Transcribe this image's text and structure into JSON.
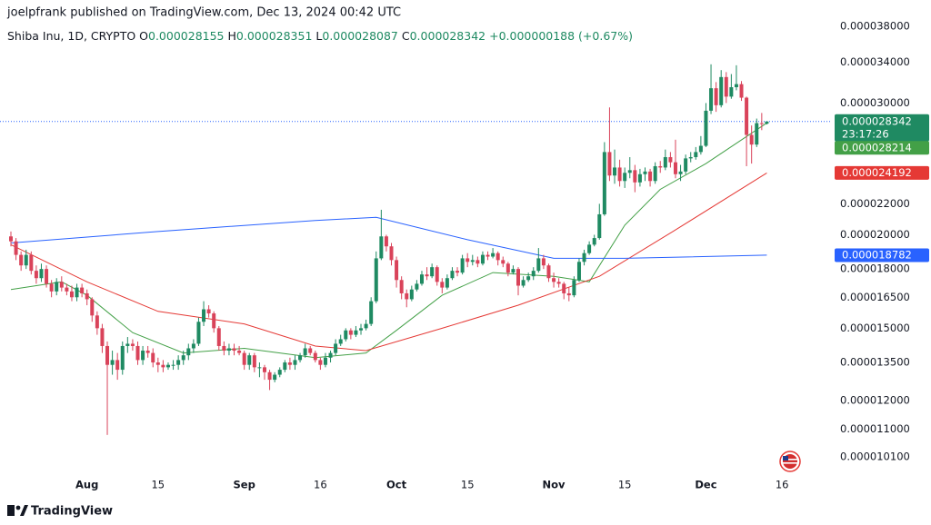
{
  "header": {
    "byline": "joelpfrank published on TradingView.com, Dec 13, 2024 00:42 UTC"
  },
  "chart_data": {
    "type": "candlestick",
    "symbol": "Shiba Inu, 1D, CRYPTO",
    "ohlc_letters": [
      "O",
      "H",
      "L",
      "C"
    ],
    "change": "+0.000000188 (+0.67%)",
    "countdown": "23:17:26",
    "log_scale": true,
    "up_color": "#1f8a62",
    "down_color": "#d9435a",
    "last_line_color": "#2962ff",
    "x": [
      "Jul 17",
      "Jul 18",
      "Jul 19",
      "Jul 20",
      "Jul 21",
      "Jul 22",
      "Jul 23",
      "Jul 24",
      "Jul 25",
      "Jul 26",
      "Jul 27",
      "Jul 28",
      "Jul 29",
      "Jul 30",
      "Jul 31",
      "Aug 1",
      "Aug 2",
      "Aug 3",
      "Aug 4",
      "Aug 5",
      "Aug 6",
      "Aug 7",
      "Aug 8",
      "Aug 9",
      "Aug 10",
      "Aug 11",
      "Aug 12",
      "Aug 13",
      "Aug 14",
      "Aug 15",
      "Aug 16",
      "Aug 17",
      "Aug 18",
      "Aug 19",
      "Aug 20",
      "Aug 21",
      "Aug 22",
      "Aug 23",
      "Aug 24",
      "Aug 25",
      "Aug 26",
      "Aug 27",
      "Aug 28",
      "Aug 29",
      "Aug 30",
      "Aug 31",
      "Sep 1",
      "Sep 2",
      "Sep 3",
      "Sep 4",
      "Sep 5",
      "Sep 6",
      "Sep 7",
      "Sep 8",
      "Sep 9",
      "Sep 10",
      "Sep 11",
      "Sep 12",
      "Sep 13",
      "Sep 14",
      "Sep 15",
      "Sep 16",
      "Sep 17",
      "Sep 18",
      "Sep 19",
      "Sep 20",
      "Sep 21",
      "Sep 22",
      "Sep 23",
      "Sep 24",
      "Sep 25",
      "Sep 26",
      "Sep 27",
      "Sep 28",
      "Sep 29",
      "Sep 30",
      "Oct 1",
      "Oct 2",
      "Oct 3",
      "Oct 4",
      "Oct 5",
      "Oct 6",
      "Oct 7",
      "Oct 8",
      "Oct 9",
      "Oct 10",
      "Oct 11",
      "Oct 12",
      "Oct 13",
      "Oct 14",
      "Oct 15",
      "Oct 16",
      "Oct 17",
      "Oct 18",
      "Oct 19",
      "Oct 20",
      "Oct 21",
      "Oct 22",
      "Oct 23",
      "Oct 24",
      "Oct 25",
      "Oct 26",
      "Oct 27",
      "Oct 28",
      "Oct 29",
      "Oct 30",
      "Oct 31",
      "Nov 1",
      "Nov 2",
      "Nov 3",
      "Nov 4",
      "Nov 5",
      "Nov 6",
      "Nov 7",
      "Nov 8",
      "Nov 9",
      "Nov 10",
      "Nov 11",
      "Nov 12",
      "Nov 13",
      "Nov 14",
      "Nov 15",
      "Nov 16",
      "Nov 17",
      "Nov 18",
      "Nov 19",
      "Nov 20",
      "Nov 21",
      "Nov 22",
      "Nov 23",
      "Nov 24",
      "Nov 25",
      "Nov 26",
      "Nov 27",
      "Nov 28",
      "Nov 29",
      "Nov 30",
      "Dec 1",
      "Dec 2",
      "Dec 3",
      "Dec 4",
      "Dec 5",
      "Dec 6",
      "Dec 7",
      "Dec 8",
      "Dec 9",
      "Dec 10",
      "Dec 11",
      "Dec 12",
      "Dec 13"
    ],
    "open": [
      1.99e-05,
      1.96e-05,
      1.88e-05,
      1.82e-05,
      1.88e-05,
      1.79e-05,
      1.75e-05,
      1.8e-05,
      1.72e-05,
      1.68e-05,
      1.73e-05,
      1.7e-05,
      1.68e-05,
      1.65e-05,
      1.7e-05,
      1.67e-05,
      1.64e-05,
      1.56e-05,
      1.5e-05,
      1.42e-05,
      1.34e-05,
      1.36e-05,
      1.32e-05,
      1.42e-05,
      1.43e-05,
      1.42e-05,
      1.36e-05,
      1.4e-05,
      1.39e-05,
      1.35e-05,
      1.34e-05,
      1.33e-05,
      1.34e-05,
      1.34e-05,
      1.36e-05,
      1.38e-05,
      1.41e-05,
      1.43e-05,
      1.53e-05,
      1.59e-05,
      1.57e-05,
      1.5e-05,
      1.42e-05,
      1.4e-05,
      1.41e-05,
      1.4e-05,
      1.39e-05,
      1.34e-05,
      1.38e-05,
      1.33e-05,
      1.33e-05,
      1.31e-05,
      1.28e-05,
      1.3e-05,
      1.32e-05,
      1.35e-05,
      1.34e-05,
      1.36e-05,
      1.38e-05,
      1.41e-05,
      1.39e-05,
      1.36e-05,
      1.34e-05,
      1.37e-05,
      1.39e-05,
      1.43e-05,
      1.45e-05,
      1.49e-05,
      1.47e-05,
      1.49e-05,
      1.5e-05,
      1.52e-05,
      1.63e-05,
      1.86e-05,
      1.99e-05,
      1.93e-05,
      1.85e-05,
      1.74e-05,
      1.67e-05,
      1.64e-05,
      1.69e-05,
      1.72e-05,
      1.77e-05,
      1.76e-05,
      1.81e-05,
      1.73e-05,
      1.7e-05,
      1.75e-05,
      1.79e-05,
      1.78e-05,
      1.86e-05,
      1.84e-05,
      1.85e-05,
      1.83e-05,
      1.88e-05,
      1.87e-05,
      1.89e-05,
      1.85e-05,
      1.83e-05,
      1.78e-05,
      1.8e-05,
      1.71e-05,
      1.74e-05,
      1.76e-05,
      1.79e-05,
      1.86e-05,
      1.82e-05,
      1.75e-05,
      1.73e-05,
      1.72e-05,
      1.67e-05,
      1.66e-05,
      1.74e-05,
      1.84e-05,
      1.89e-05,
      1.94e-05,
      1.98e-05,
      2.13e-05,
      2.58e-05,
      2.4e-05,
      2.46e-05,
      2.36e-05,
      2.42e-05,
      2.44e-05,
      2.35e-05,
      2.41e-05,
      2.43e-05,
      2.36e-05,
      2.47e-05,
      2.46e-05,
      2.54e-05,
      2.5e-05,
      2.41e-05,
      2.43e-05,
      2.53e-05,
      2.54e-05,
      2.58e-05,
      2.63e-05,
      2.93e-05,
      3.14e-05,
      2.98e-05,
      3.25e-05,
      3.06e-05,
      3.15e-05,
      3.18e-05,
      3.05e-05,
      2.72e-05,
      2.64e-05,
      2.82e-05,
      2.8155e-05
    ],
    "high": [
      2.02e-05,
      1.98e-05,
      1.9e-05,
      1.91e-05,
      1.9e-05,
      1.82e-05,
      1.83e-05,
      1.82e-05,
      1.74e-05,
      1.75e-05,
      1.76e-05,
      1.72e-05,
      1.71e-05,
      1.72e-05,
      1.72e-05,
      1.69e-05,
      1.65e-05,
      1.58e-05,
      1.52e-05,
      1.44e-05,
      1.4e-05,
      1.39e-05,
      1.44e-05,
      1.46e-05,
      1.45e-05,
      1.44e-05,
      1.42e-05,
      1.42e-05,
      1.41e-05,
      1.37e-05,
      1.36e-05,
      1.35e-05,
      1.36e-05,
      1.38e-05,
      1.4e-05,
      1.43e-05,
      1.45e-05,
      1.55e-05,
      1.63e-05,
      1.61e-05,
      1.58e-05,
      1.51e-05,
      1.44e-05,
      1.43e-05,
      1.43e-05,
      1.42e-05,
      1.4e-05,
      1.39e-05,
      1.39e-05,
      1.35e-05,
      1.34e-05,
      1.32e-05,
      1.31e-05,
      1.33e-05,
      1.36e-05,
      1.37e-05,
      1.38e-05,
      1.39e-05,
      1.43e-05,
      1.42e-05,
      1.4e-05,
      1.37e-05,
      1.39e-05,
      1.4e-05,
      1.45e-05,
      1.47e-05,
      1.5e-05,
      1.5e-05,
      1.51e-05,
      1.52e-05,
      1.54e-05,
      1.65e-05,
      1.9e-05,
      2.16e-05,
      2e-05,
      1.95e-05,
      1.87e-05,
      1.76e-05,
      1.69e-05,
      1.71e-05,
      1.74e-05,
      1.79e-05,
      1.81e-05,
      1.83e-05,
      1.82e-05,
      1.75e-05,
      1.77e-05,
      1.81e-05,
      1.81e-05,
      1.88e-05,
      1.89e-05,
      1.88e-05,
      1.87e-05,
      1.9e-05,
      1.9e-05,
      1.92e-05,
      1.9e-05,
      1.87e-05,
      1.84e-05,
      1.82e-05,
      1.81e-05,
      1.76e-05,
      1.78e-05,
      1.81e-05,
      1.92e-05,
      1.88e-05,
      1.83e-05,
      1.78e-05,
      1.75e-05,
      1.73e-05,
      1.7e-05,
      1.76e-05,
      1.86e-05,
      1.91e-05,
      1.96e-05,
      2e-05,
      2.2e-05,
      2.66e-05,
      2.96e-05,
      2.6e-05,
      2.52e-05,
      2.46e-05,
      2.54e-05,
      2.48e-05,
      2.45e-05,
      2.46e-05,
      2.45e-05,
      2.5e-05,
      2.51e-05,
      2.6e-05,
      2.58e-05,
      2.68e-05,
      2.48e-05,
      2.56e-05,
      2.58e-05,
      2.62e-05,
      2.71e-05,
      3e-05,
      3.38e-05,
      3.2e-05,
      3.32e-05,
      3.3e-05,
      3.28e-05,
      3.37e-05,
      3.21e-05,
      3.06e-05,
      2.8e-05,
      2.86e-05,
      2.91e-05,
      2.8351e-05
    ],
    "low": [
      1.93e-05,
      1.85e-05,
      1.79e-05,
      1.8e-05,
      1.77e-05,
      1.72e-05,
      1.73e-05,
      1.7e-05,
      1.65e-05,
      1.66e-05,
      1.68e-05,
      1.66e-05,
      1.63e-05,
      1.63e-05,
      1.65e-05,
      1.61e-05,
      1.53e-05,
      1.47e-05,
      1.39e-05,
      1.08e-05,
      1.3e-05,
      1.28e-05,
      1.3e-05,
      1.39e-05,
      1.4e-05,
      1.34e-05,
      1.34e-05,
      1.37e-05,
      1.33e-05,
      1.31e-05,
      1.31e-05,
      1.32e-05,
      1.32e-05,
      1.32e-05,
      1.34e-05,
      1.36e-05,
      1.39e-05,
      1.42e-05,
      1.51e-05,
      1.55e-05,
      1.48e-05,
      1.4e-05,
      1.38e-05,
      1.38e-05,
      1.38e-05,
      1.38e-05,
      1.32e-05,
      1.32e-05,
      1.31e-05,
      1.29e-05,
      1.28e-05,
      1.24e-05,
      1.27e-05,
      1.29e-05,
      1.31e-05,
      1.32e-05,
      1.32e-05,
      1.35e-05,
      1.37e-05,
      1.38e-05,
      1.35e-05,
      1.32e-05,
      1.33e-05,
      1.35e-05,
      1.38e-05,
      1.42e-05,
      1.44e-05,
      1.45e-05,
      1.46e-05,
      1.47e-05,
      1.49e-05,
      1.51e-05,
      1.62e-05,
      1.85e-05,
      1.9e-05,
      1.82e-05,
      1.7e-05,
      1.64e-05,
      1.6e-05,
      1.63e-05,
      1.68e-05,
      1.71e-05,
      1.74e-05,
      1.75e-05,
      1.71e-05,
      1.67e-05,
      1.69e-05,
      1.74e-05,
      1.76e-05,
      1.77e-05,
      1.81e-05,
      1.82e-05,
      1.81e-05,
      1.82e-05,
      1.85e-05,
      1.86e-05,
      1.82e-05,
      1.81e-05,
      1.76e-05,
      1.77e-05,
      1.66e-05,
      1.7e-05,
      1.73e-05,
      1.74e-05,
      1.78e-05,
      1.8e-05,
      1.73e-05,
      1.7e-05,
      1.7e-05,
      1.64e-05,
      1.63e-05,
      1.65e-05,
      1.73e-05,
      1.82e-05,
      1.88e-05,
      1.93e-05,
      1.97e-05,
      2.12e-05,
      2.36e-05,
      2.34e-05,
      2.32e-05,
      2.31e-05,
      2.38e-05,
      2.28e-05,
      2.32e-05,
      2.36e-05,
      2.32e-05,
      2.34e-05,
      2.42e-05,
      2.44e-05,
      2.46e-05,
      2.38e-05,
      2.36e-05,
      2.41e-05,
      2.5e-05,
      2.52e-05,
      2.56e-05,
      2.62e-05,
      2.9e-05,
      2.92e-05,
      2.96e-05,
      3e-05,
      3.04e-05,
      3.12e-05,
      3.02e-05,
      2.47e-05,
      2.49e-05,
      2.62e-05,
      2.76e-05,
      2.8087e-05
    ],
    "close": [
      1.96e-05,
      1.88e-05,
      1.82e-05,
      1.88e-05,
      1.79e-05,
      1.75e-05,
      1.8e-05,
      1.72e-05,
      1.68e-05,
      1.73e-05,
      1.7e-05,
      1.68e-05,
      1.65e-05,
      1.7e-05,
      1.67e-05,
      1.64e-05,
      1.56e-05,
      1.5e-05,
      1.42e-05,
      1.34e-05,
      1.36e-05,
      1.32e-05,
      1.42e-05,
      1.43e-05,
      1.42e-05,
      1.36e-05,
      1.4e-05,
      1.39e-05,
      1.35e-05,
      1.34e-05,
      1.33e-05,
      1.34e-05,
      1.34e-05,
      1.36e-05,
      1.38e-05,
      1.41e-05,
      1.43e-05,
      1.53e-05,
      1.59e-05,
      1.57e-05,
      1.5e-05,
      1.42e-05,
      1.4e-05,
      1.41e-05,
      1.4e-05,
      1.39e-05,
      1.34e-05,
      1.38e-05,
      1.33e-05,
      1.33e-05,
      1.31e-05,
      1.28e-05,
      1.3e-05,
      1.32e-05,
      1.35e-05,
      1.34e-05,
      1.36e-05,
      1.38e-05,
      1.41e-05,
      1.39e-05,
      1.36e-05,
      1.34e-05,
      1.37e-05,
      1.39e-05,
      1.43e-05,
      1.45e-05,
      1.49e-05,
      1.47e-05,
      1.49e-05,
      1.5e-05,
      1.52e-05,
      1.63e-05,
      1.86e-05,
      1.99e-05,
      1.93e-05,
      1.85e-05,
      1.74e-05,
      1.67e-05,
      1.64e-05,
      1.69e-05,
      1.72e-05,
      1.77e-05,
      1.76e-05,
      1.81e-05,
      1.73e-05,
      1.7e-05,
      1.75e-05,
      1.79e-05,
      1.78e-05,
      1.86e-05,
      1.84e-05,
      1.85e-05,
      1.83e-05,
      1.88e-05,
      1.87e-05,
      1.89e-05,
      1.85e-05,
      1.83e-05,
      1.78e-05,
      1.8e-05,
      1.71e-05,
      1.74e-05,
      1.76e-05,
      1.79e-05,
      1.86e-05,
      1.82e-05,
      1.75e-05,
      1.73e-05,
      1.72e-05,
      1.67e-05,
      1.66e-05,
      1.74e-05,
      1.84e-05,
      1.89e-05,
      1.94e-05,
      1.98e-05,
      2.13e-05,
      2.58e-05,
      2.4e-05,
      2.46e-05,
      2.36e-05,
      2.42e-05,
      2.44e-05,
      2.35e-05,
      2.41e-05,
      2.43e-05,
      2.36e-05,
      2.47e-05,
      2.46e-05,
      2.54e-05,
      2.5e-05,
      2.41e-05,
      2.43e-05,
      2.53e-05,
      2.54e-05,
      2.58e-05,
      2.63e-05,
      2.93e-05,
      3.14e-05,
      2.98e-05,
      3.25e-05,
      3.06e-05,
      3.15e-05,
      3.18e-05,
      3.05e-05,
      2.72e-05,
      2.64e-05,
      2.82e-05,
      2.8155e-05,
      2.8342e-05
    ],
    "ma": [
      {
        "color": "#43a047",
        "x": [
          "Jul 17",
          "Jul 27",
          "Aug 1",
          "Aug 10",
          "Aug 20",
          "Sep 1",
          "Sep 15",
          "Sep 25",
          "Oct 1",
          "Oct 10",
          "Oct 20",
          "Nov 1",
          "Nov 8",
          "Nov 15",
          "Nov 22",
          "Dec 1",
          "Dec 13"
        ],
        "values": [
          1.69e-05,
          1.73e-05,
          1.66e-05,
          1.48e-05,
          1.39e-05,
          1.41e-05,
          1.37e-05,
          1.39e-05,
          1.49e-05,
          1.66e-05,
          1.78e-05,
          1.76e-05,
          1.73e-05,
          2.06e-05,
          2.3e-05,
          2.49e-05,
          2.8214e-05
        ]
      },
      {
        "color": "#e53935",
        "x": [
          "Jul 17",
          "Aug 1",
          "Aug 15",
          "Sep 1",
          "Sep 15",
          "Sep 25",
          "Oct 10",
          "Oct 25",
          "Nov 10",
          "Nov 25",
          "Dec 13"
        ],
        "values": [
          1.94e-05,
          1.73e-05,
          1.58e-05,
          1.52e-05,
          1.42e-05,
          1.4e-05,
          1.5e-05,
          1.61e-05,
          1.76e-05,
          2.03e-05,
          2.4192e-05
        ]
      },
      {
        "color": "#2962ff",
        "x": [
          "Jul 17",
          "Aug 15",
          "Sep 15",
          "Sep 27",
          "Oct 15",
          "Nov 1",
          "Nov 15",
          "Dec 13"
        ],
        "values": [
          1.95e-05,
          2.02e-05,
          2.09e-05,
          2.11e-05,
          1.97e-05,
          1.86e-05,
          1.86e-05,
          1.8782e-05
        ]
      }
    ],
    "ylim": [
      9.68e-06,
      4.12e-05
    ],
    "yticks": [
      {
        "value": 3.8e-05,
        "label": "0.000038000"
      },
      {
        "value": 3.4e-05,
        "label": "0.000034000"
      },
      {
        "value": 3e-05,
        "label": "0.000030000"
      },
      {
        "value": 2.2e-05,
        "label": "0.000022000"
      },
      {
        "value": 2e-05,
        "label": "0.000020000"
      },
      {
        "value": 1.8e-05,
        "label": "0.000018000"
      },
      {
        "value": 1.65e-05,
        "label": "0.000016500"
      },
      {
        "value": 1.5e-05,
        "label": "0.000015000"
      },
      {
        "value": 1.35e-05,
        "label": "0.000013500"
      },
      {
        "value": 1.2e-05,
        "label": "0.000012000"
      },
      {
        "value": 1.1e-05,
        "label": "0.000011000"
      },
      {
        "value": 1.01e-05,
        "label": "0.000010100"
      }
    ],
    "xticks": [
      {
        "value": "Aug 1",
        "label": "Aug"
      },
      {
        "value": "Aug 15",
        "label": "15"
      },
      {
        "value": "Sep 1",
        "label": "Sep"
      },
      {
        "value": "Sep 16",
        "label": "16"
      },
      {
        "value": "Oct 1",
        "label": "Oct"
      },
      {
        "value": "Oct 15",
        "label": "15"
      },
      {
        "value": "Nov 1",
        "label": "Nov"
      },
      {
        "value": "Nov 15",
        "label": "15"
      },
      {
        "value": "Dec 1",
        "label": "Dec"
      },
      {
        "value": "Dec 16",
        "label": "16"
      }
    ]
  },
  "footer": {
    "brand": "TradingView"
  }
}
